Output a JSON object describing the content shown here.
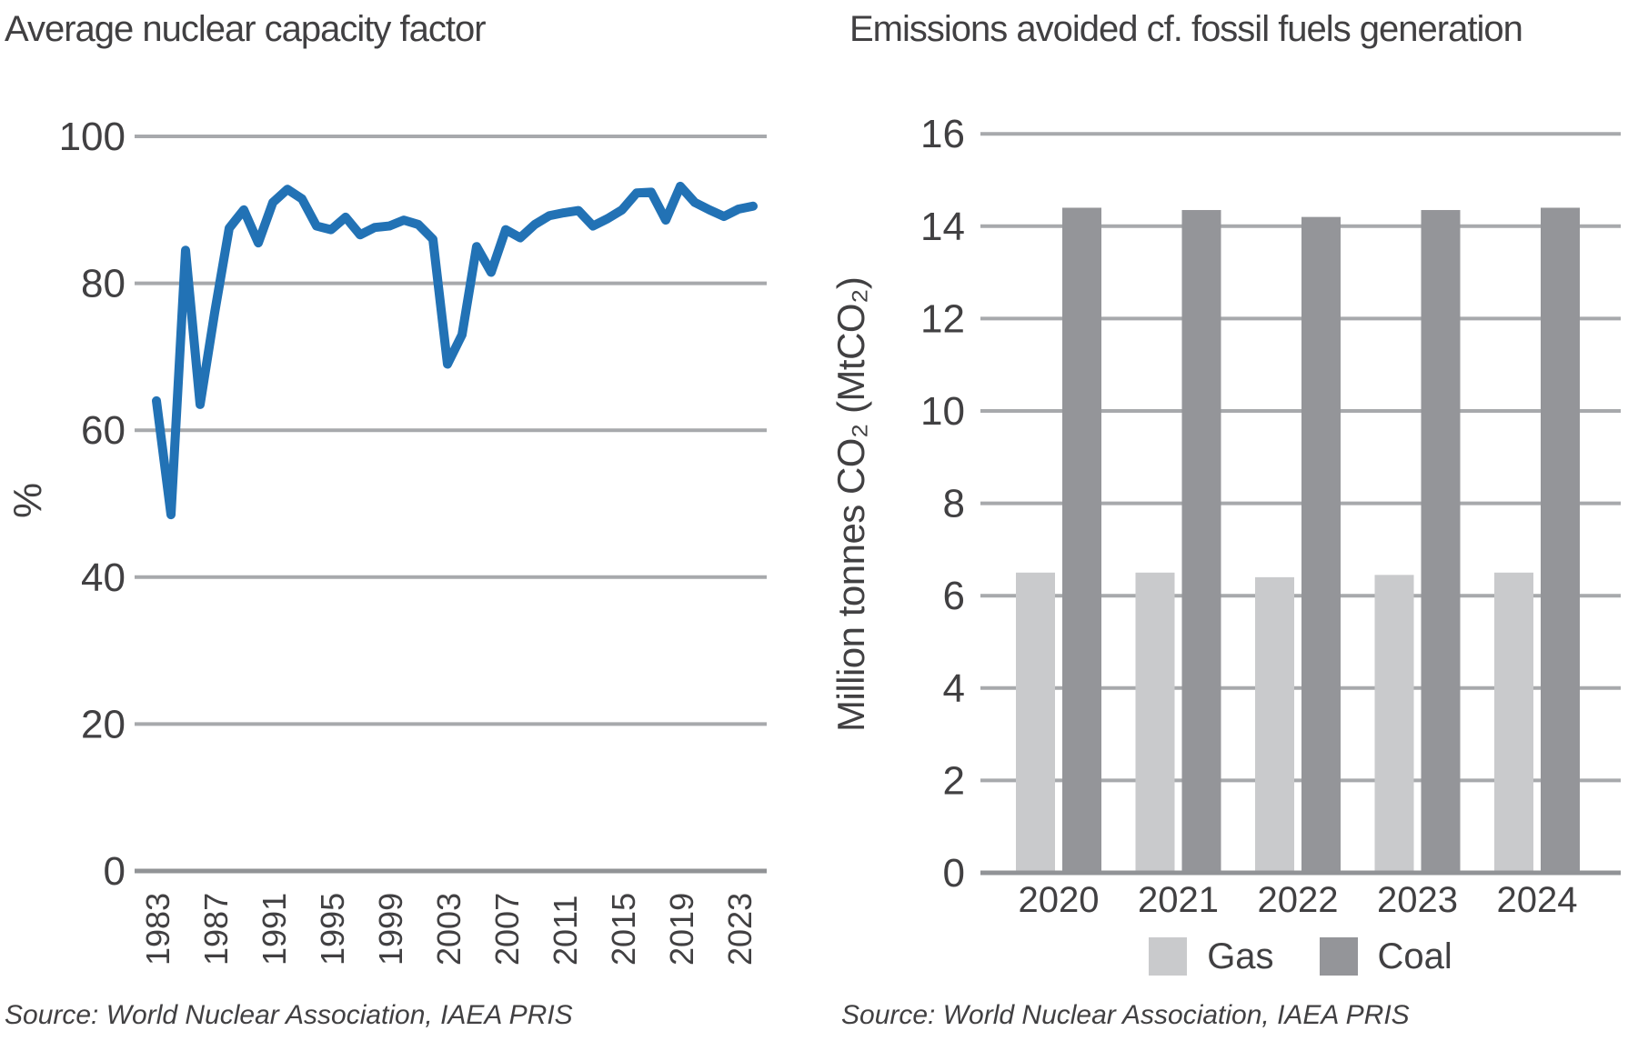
{
  "page": {
    "background": "#ffffff",
    "text_color": "#414042",
    "grid_color": "#a7a9ac",
    "zero_axis_color": "#919396"
  },
  "chart_data": [
    {
      "type": "line",
      "title": "Average nuclear capacity factor",
      "ylabel": "%",
      "xlabel": "",
      "source": "Source: World Nuclear Association, IAEA PRIS",
      "ylim": [
        0,
        100
      ],
      "yticks": [
        0,
        20,
        40,
        60,
        80,
        100
      ],
      "xticks": [
        1983,
        1987,
        1991,
        1995,
        1999,
        2003,
        2007,
        2011,
        2015,
        2019,
        2023
      ],
      "grid": "horizontal",
      "legend": "none",
      "x": [
        1983,
        1984,
        1985,
        1986,
        1987,
        1988,
        1989,
        1990,
        1991,
        1992,
        1993,
        1994,
        1995,
        1996,
        1997,
        1998,
        1999,
        2000,
        2001,
        2002,
        2003,
        2004,
        2005,
        2006,
        2007,
        2008,
        2009,
        2010,
        2011,
        2012,
        2013,
        2014,
        2015,
        2016,
        2017,
        2018,
        2019,
        2020,
        2021,
        2022,
        2023,
        2024
      ],
      "series": [
        {
          "name": "Average nuclear capacity factor",
          "color": "#2272b5",
          "values": [
            64,
            48.5,
            84.5,
            63.5,
            76,
            87.5,
            90,
            85.5,
            91,
            92.8,
            91.5,
            87.8,
            87.3,
            89,
            86.6,
            87.6,
            87.8,
            88.6,
            88,
            86,
            69,
            73,
            85,
            81.5,
            87.3,
            86.2,
            88,
            89.2,
            89.6,
            89.9,
            87.8,
            88.8,
            90,
            92.3,
            92.4,
            88.6,
            93.2,
            91,
            90,
            89.1,
            90.1,
            90.5
          ]
        }
      ]
    },
    {
      "type": "bar",
      "title": "Emissions avoided cf. fossil fuels generation",
      "ylabel": "Million tonnes CO₂ (MtCO₂)",
      "xlabel": "",
      "source": "Source: World Nuclear Association, IAEA PRIS",
      "ylim": [
        0,
        16
      ],
      "yticks": [
        0,
        2,
        4,
        6,
        8,
        10,
        12,
        14,
        16
      ],
      "grid": "horizontal",
      "legend_position": "bottom",
      "categories": [
        "2020",
        "2021",
        "2022",
        "2023",
        "2024"
      ],
      "series": [
        {
          "name": "Gas",
          "color": "#c9cacc",
          "values": [
            6.5,
            6.5,
            6.4,
            6.45,
            6.5
          ]
        },
        {
          "name": "Coal",
          "color": "#949599",
          "values": [
            14.4,
            14.35,
            14.2,
            14.35,
            14.4
          ]
        }
      ]
    }
  ]
}
